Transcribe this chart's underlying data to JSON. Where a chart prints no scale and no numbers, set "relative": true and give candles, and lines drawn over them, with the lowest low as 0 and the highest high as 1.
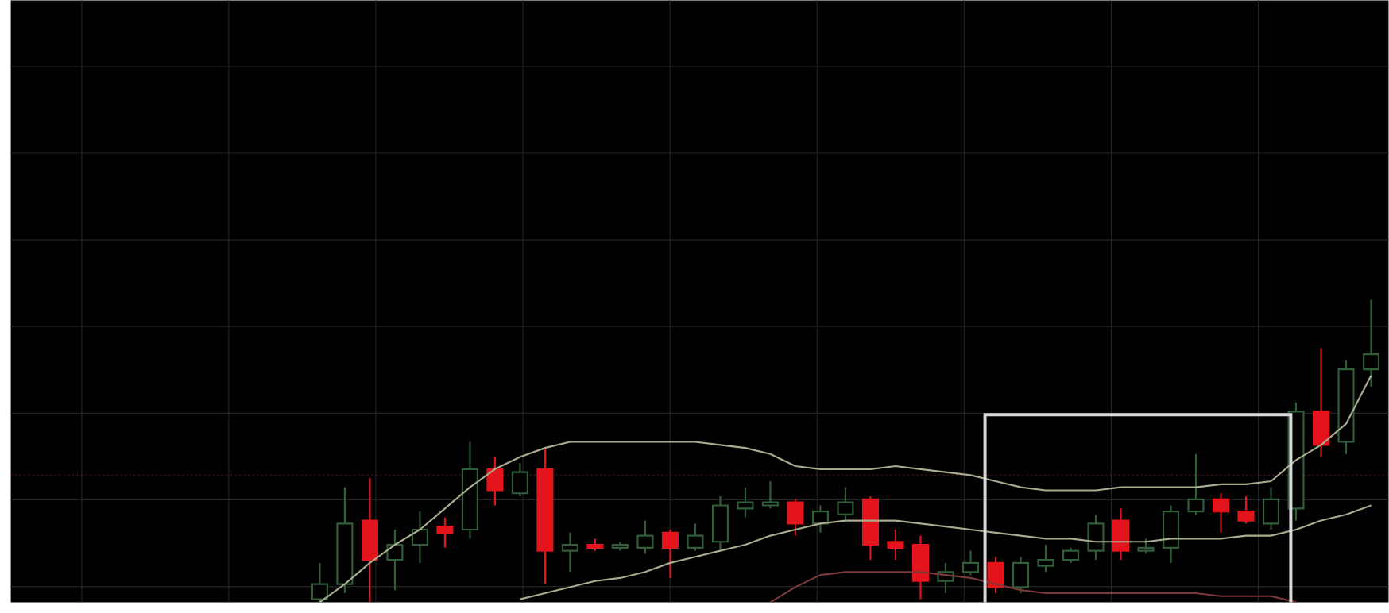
{
  "chart_data": {
    "type": "candlestick",
    "relative": true,
    "grid": true,
    "categories": [
      null,
      null,
      null,
      null,
      null,
      null,
      null,
      null,
      null,
      null,
      null,
      null,
      null,
      null,
      null,
      null,
      null,
      null,
      null,
      null,
      null,
      null,
      null,
      null,
      null,
      null,
      null,
      null,
      null,
      null,
      null,
      null,
      null,
      null,
      null,
      null,
      null,
      null,
      null,
      null,
      null,
      null,
      null
    ],
    "ohlc": [
      [
        0.01,
        0.13,
        0,
        0.06
      ],
      [
        0.06,
        0.38,
        0.03,
        0.26
      ],
      [
        0.27,
        0.41,
        0,
        0.14
      ],
      [
        0.14,
        0.24,
        0.04,
        0.19
      ],
      [
        0.19,
        0.3,
        0.13,
        0.24
      ],
      [
        0.25,
        0.28,
        0.18,
        0.23
      ],
      [
        0.24,
        0.53,
        0.21,
        0.44
      ],
      [
        0.44,
        0.48,
        0.32,
        0.37
      ],
      [
        0.36,
        0.46,
        0.35,
        0.43
      ],
      [
        0.44,
        0.51,
        0.06,
        0.17
      ],
      [
        0.17,
        0.23,
        0.1,
        0.19
      ],
      [
        0.19,
        0.21,
        0.17,
        0.18
      ],
      [
        0.18,
        0.2,
        0.17,
        0.19
      ],
      [
        0.18,
        0.27,
        0.16,
        0.22
      ],
      [
        0.23,
        0.24,
        0.08,
        0.18
      ],
      [
        0.18,
        0.26,
        0.17,
        0.22
      ],
      [
        0.2,
        0.35,
        0.17,
        0.32
      ],
      [
        0.31,
        0.38,
        0.28,
        0.33
      ],
      [
        0.32,
        0.4,
        0.31,
        0.33
      ],
      [
        0.33,
        0.34,
        0.22,
        0.26
      ],
      [
        0.26,
        0.32,
        0.23,
        0.3
      ],
      [
        0.29,
        0.38,
        0.27,
        0.33
      ],
      [
        0.34,
        0.35,
        0.14,
        0.19
      ],
      [
        0.2,
        0.24,
        0.14,
        0.18
      ],
      [
        0.19,
        0.22,
        0.01,
        0.07
      ],
      [
        0.07,
        0.13,
        0.03,
        0.1
      ],
      [
        0.1,
        0.17,
        0.09,
        0.13
      ],
      [
        0.13,
        0.15,
        0.03,
        0.05
      ],
      [
        0.05,
        0.15,
        0.03,
        0.13
      ],
      [
        0.12,
        0.19,
        0.1,
        0.14
      ],
      [
        0.14,
        0.18,
        0.13,
        0.17
      ],
      [
        0.17,
        0.29,
        0.14,
        0.26
      ],
      [
        0.27,
        0.31,
        0.14,
        0.17
      ],
      [
        0.17,
        0.21,
        0.16,
        0.18
      ],
      [
        0.18,
        0.32,
        0.13,
        0.3
      ],
      [
        0.3,
        0.49,
        0.29,
        0.34
      ],
      [
        0.34,
        0.36,
        0.23,
        0.3
      ],
      [
        0.3,
        0.35,
        0.26,
        0.27
      ],
      [
        0.26,
        0.38,
        0.24,
        0.34
      ],
      [
        0.31,
        0.66,
        0.27,
        0.63
      ],
      [
        0.63,
        0.84,
        0.48,
        0.52
      ],
      [
        0.53,
        0.8,
        0.49,
        0.77
      ],
      [
        0.77,
        1,
        0.71,
        0.82
      ]
    ],
    "colors": [
      "#2f5e38",
      "#2f5e38",
      "#e3141b",
      "#2f5e38",
      "#2f5e38",
      "#e3141b",
      "#2f5e38",
      "#e3141b",
      "#2f5e38",
      "#e3141b",
      "#2f5e38",
      "#e3141b",
      "#2f5e38",
      "#2f5e38",
      "#e3141b",
      "#2f5e38",
      "#2f5e38",
      "#2f5e38",
      "#2f5e38",
      "#e3141b",
      "#2f5e38",
      "#2f5e38",
      "#e3141b",
      "#e3141b",
      "#e3141b",
      "#2f5e38",
      "#2f5e38",
      "#e3141b",
      "#2f5e38",
      "#2f5e38",
      "#2f5e38",
      "#2f5e38",
      "#e3141b",
      "#2f5e38",
      "#2f5e38",
      "#2f5e38",
      "#e3141b",
      "#e3141b",
      "#2f5e38",
      "#2f5e38",
      "#e3141b",
      "#2f5e38",
      "#2f5e38"
    ],
    "series": [
      {
        "type": "line",
        "color": "#a8ab8e",
        "values": [
          0,
          0.06,
          0.13,
          0.19,
          0.24,
          0.31,
          0.38,
          0.44,
          0.48,
          0.51,
          0.53,
          0.53,
          0.53,
          0.53,
          0.53,
          0.53,
          0.52,
          0.51,
          0.49,
          0.45,
          0.44,
          0.44,
          0.44,
          0.45,
          0.44,
          0.43,
          0.42,
          0.4,
          0.38,
          0.37,
          0.37,
          0.37,
          0.38,
          0.38,
          0.38,
          0.38,
          0.39,
          0.39,
          0.4,
          0.47,
          0.52,
          0.59,
          0.75
        ]
      },
      {
        "type": "line",
        "color": "#a8ab8e",
        "values": [
          null,
          null,
          null,
          null,
          null,
          null,
          null,
          null,
          0.01,
          0.03,
          0.05,
          0.07,
          0.08,
          0.1,
          0.13,
          0.15,
          0.17,
          0.19,
          0.22,
          0.24,
          0.26,
          0.27,
          0.27,
          0.27,
          0.26,
          0.25,
          0.24,
          0.23,
          0.22,
          0.21,
          0.21,
          0.2,
          0.2,
          0.2,
          0.21,
          0.21,
          0.21,
          0.22,
          0.22,
          0.24,
          0.27,
          0.29,
          0.32
        ]
      },
      {
        "type": "line",
        "color": "#7a3a3a",
        "values": [
          null,
          null,
          null,
          null,
          null,
          null,
          null,
          null,
          null,
          null,
          null,
          null,
          null,
          null,
          null,
          null,
          null,
          null,
          0,
          0.05,
          0.09,
          0.1,
          0.1,
          0.1,
          0.1,
          0.09,
          0.08,
          0.06,
          0.04,
          0.03,
          0.03,
          0.03,
          0.03,
          0.03,
          0.03,
          0.03,
          0.02,
          0.02,
          0.02,
          0,
          null,
          null,
          null
        ]
      }
    ],
    "ref_lines": [
      {
        "axis": "y",
        "value": 0.42,
        "color": "#6b1a1a",
        "line_style": "dotted"
      }
    ]
  }
}
